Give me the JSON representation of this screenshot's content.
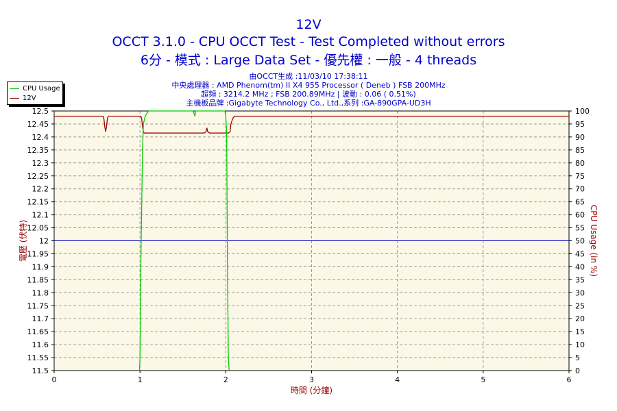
{
  "titles": {
    "main": "12V",
    "line2": "OCCT 3.1.0 - CPU OCCT Test - Test Completed without errors",
    "line3": "6分 - 模式 : Large Data Set - 優先權 : 一般 - 4 threads"
  },
  "info": {
    "line1": "由OCCT生成 :11/03/10 17:38:11",
    "line2": "中央處理器 : AMD Phenom(tm) II X4 955 Processor ( Deneb ) FSB 200MHz",
    "line3": "超頻 : 3214.2 MHz ; FSB 200.89MHz | 波動 : 0.06 ( 0.51%)",
    "line4": "主機板品牌 :Gigabyte Technology Co., Ltd.,系列 :GA-890GPA-UD3H"
  },
  "legend": [
    {
      "label": "CPU Usage",
      "color": "#00cc00"
    },
    {
      "label": "12V",
      "color": "#990000"
    }
  ],
  "colors": {
    "plot_bg": "#fbf8e8",
    "grid": "#9a9a9a",
    "voltage": "#990000",
    "cpu": "#00cc00",
    "reference": "#0000bb",
    "axis_text": "#990000"
  },
  "chart_data": {
    "type": "line",
    "title": "12V",
    "xlabel": "時間 (分鐘)",
    "ylabel_left": "電壓 (伏特)",
    "ylabel_right": "CPU Usage (in %)",
    "xlim": [
      0,
      6
    ],
    "ylim_left": [
      11.5,
      12.5
    ],
    "ylim_right": [
      0,
      100
    ],
    "x_ticks": [
      "0",
      "1",
      "2",
      "3",
      "4",
      "5",
      "6"
    ],
    "y_left_ticks": [
      "12.5",
      "12.45",
      "12.4",
      "12.35",
      "12.3",
      "12.25",
      "12.2",
      "12.15",
      "12.1",
      "12.05",
      "12",
      "11.95",
      "11.9",
      "11.85",
      "11.8",
      "11.75",
      "11.7",
      "11.65",
      "11.6",
      "11.55",
      "11.5"
    ],
    "y_right_ticks": [
      "100",
      "95",
      "90",
      "85",
      "80",
      "75",
      "70",
      "65",
      "60",
      "55",
      "50",
      "45",
      "40",
      "35",
      "30",
      "25",
      "20",
      "15",
      "10",
      "5",
      "0"
    ],
    "grid": true,
    "reference_line": {
      "axis": "left",
      "value": 12.0
    },
    "series": [
      {
        "name": "12V",
        "axis": "left",
        "x": [
          0,
          0.57,
          0.58,
          0.59,
          0.6,
          0.61,
          0.62,
          0.63,
          1.01,
          1.02,
          1.03,
          1.04,
          1.05,
          1.75,
          1.77,
          1.78,
          1.79,
          1.81,
          2.03,
          2.05,
          2.06,
          2.08,
          2.1,
          6.0
        ],
        "values": [
          12.48,
          12.48,
          12.47,
          12.44,
          12.42,
          12.44,
          12.47,
          12.48,
          12.48,
          12.47,
          12.44,
          12.42,
          12.415,
          12.415,
          12.42,
          12.435,
          12.42,
          12.415,
          12.415,
          12.42,
          12.45,
          12.47,
          12.48,
          12.48
        ]
      },
      {
        "name": "CPU Usage",
        "axis": "right",
        "x": [
          0.995,
          1.0,
          1.01,
          1.03,
          1.04,
          1.06,
          1.08,
          1.1,
          1.5,
          1.62,
          1.64,
          1.65,
          1.67,
          1.7,
          1.99,
          2.0,
          2.01,
          2.02,
          2.03,
          2.04
        ],
        "values": [
          0,
          5,
          40,
          85,
          95,
          98,
          99,
          100,
          100,
          100,
          98,
          100,
          100,
          100,
          100,
          98,
          92,
          40,
          5,
          0
        ]
      }
    ]
  }
}
